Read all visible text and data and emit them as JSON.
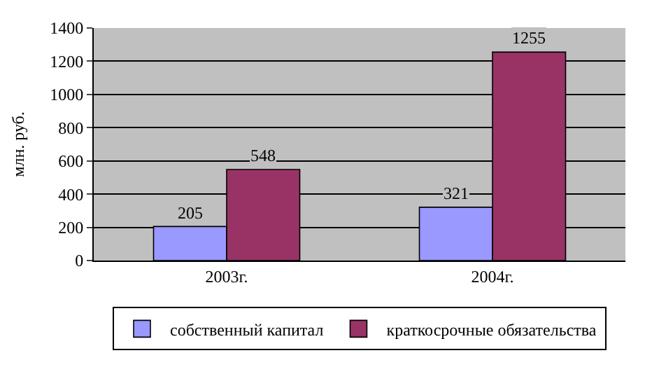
{
  "chart_data": {
    "type": "bar",
    "categories": [
      "2003г.",
      "2004г."
    ],
    "ylabel": "млн. руб.",
    "series": [
      {
        "name": "собственный капитал",
        "color": "#9999ff",
        "values": [
          205,
          321
        ]
      },
      {
        "name": "краткосрочные обязательства",
        "color": "#993366",
        "values": [
          548,
          1255
        ]
      }
    ],
    "ylim": [
      0,
      1400
    ],
    "yticks": [
      0,
      200,
      400,
      600,
      800,
      1000,
      1200,
      1400
    ],
    "grid": "y",
    "legend": "bottom",
    "data_labels": true
  }
}
